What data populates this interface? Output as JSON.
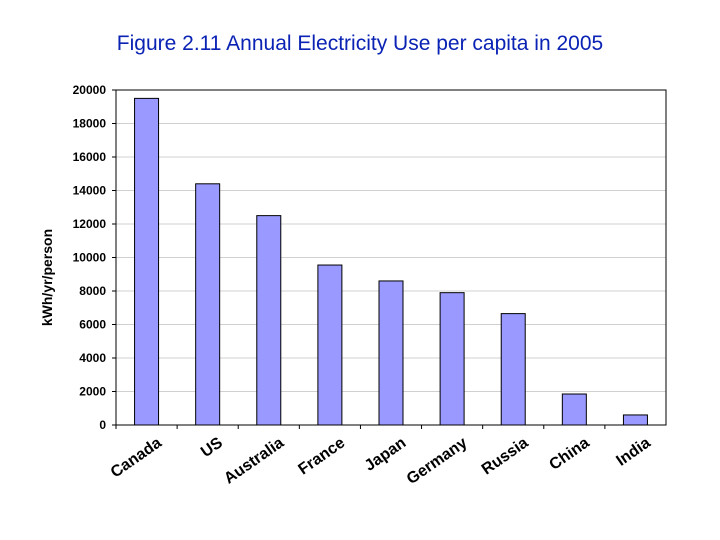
{
  "chart_data": {
    "type": "bar",
    "title": "Figure 2.11 Annual Electricity Use per capita in 2005",
    "xlabel": "",
    "ylabel": "kWh/yr/person",
    "ylim": [
      0,
      20000
    ],
    "yticks": [
      "0",
      "2000",
      "4000",
      "6000",
      "8000",
      "10000",
      "12000",
      "14000",
      "16000",
      "18000",
      "20000"
    ],
    "categories": [
      "Canada",
      "US",
      "Australia",
      "France",
      "Japan",
      "Germany",
      "Russia",
      "China",
      "India"
    ],
    "values": [
      19500,
      14400,
      12500,
      9550,
      8600,
      7900,
      6650,
      1850,
      600
    ],
    "grid": true,
    "bar_color": "#9999ff",
    "title_color": "#0a23b4"
  }
}
